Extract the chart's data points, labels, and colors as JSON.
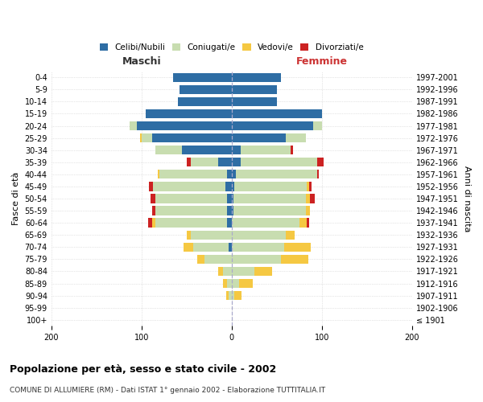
{
  "age_groups": [
    "100+",
    "95-99",
    "90-94",
    "85-89",
    "80-84",
    "75-79",
    "70-74",
    "65-69",
    "60-64",
    "55-59",
    "50-54",
    "45-49",
    "40-44",
    "35-39",
    "30-34",
    "25-29",
    "20-24",
    "15-19",
    "10-14",
    "5-9",
    "0-4"
  ],
  "birth_years": [
    "≤ 1901",
    "1902-1906",
    "1907-1911",
    "1912-1916",
    "1917-1921",
    "1922-1926",
    "1927-1931",
    "1932-1936",
    "1937-1941",
    "1942-1946",
    "1947-1951",
    "1952-1956",
    "1957-1961",
    "1962-1966",
    "1967-1971",
    "1972-1976",
    "1977-1981",
    "1982-1986",
    "1987-1991",
    "1992-1996",
    "1997-2001"
  ],
  "maschi": {
    "celibi": [
      0,
      0,
      0,
      0,
      0,
      0,
      3,
      0,
      5,
      5,
      5,
      7,
      5,
      15,
      55,
      88,
      105,
      95,
      60,
      58,
      65
    ],
    "coniugati": [
      0,
      0,
      3,
      5,
      10,
      30,
      40,
      45,
      80,
      80,
      80,
      80,
      75,
      30,
      30,
      12,
      8,
      0,
      0,
      0,
      0
    ],
    "vedovi": [
      0,
      0,
      3,
      5,
      5,
      8,
      10,
      5,
      3,
      0,
      0,
      0,
      2,
      0,
      0,
      2,
      0,
      0,
      0,
      0,
      0
    ],
    "divorziati": [
      0,
      0,
      0,
      0,
      0,
      0,
      0,
      0,
      5,
      3,
      5,
      5,
      0,
      5,
      0,
      0,
      0,
      0,
      0,
      0,
      0
    ]
  },
  "femmine": {
    "nubili": [
      0,
      0,
      0,
      0,
      0,
      0,
      0,
      0,
      0,
      2,
      2,
      3,
      5,
      10,
      10,
      60,
      90,
      100,
      50,
      50,
      55
    ],
    "coniugate": [
      0,
      0,
      3,
      8,
      25,
      55,
      58,
      60,
      75,
      80,
      80,
      80,
      90,
      85,
      55,
      22,
      10,
      0,
      0,
      0,
      0
    ],
    "vedove": [
      0,
      0,
      8,
      15,
      20,
      30,
      30,
      10,
      8,
      5,
      5,
      3,
      0,
      0,
      0,
      0,
      0,
      0,
      0,
      0,
      0
    ],
    "divorziate": [
      0,
      0,
      0,
      0,
      0,
      0,
      0,
      0,
      3,
      0,
      5,
      3,
      2,
      7,
      3,
      0,
      0,
      0,
      0,
      0,
      0
    ]
  },
  "colors": {
    "celibi": "#2e6da4",
    "coniugati": "#c8ddb0",
    "vedovi": "#f5c842",
    "divorziati": "#cc2222"
  },
  "xlim": 200,
  "title": "Popolazione per età, sesso e stato civile - 2002",
  "subtitle": "COMUNE DI ALLUMIERE (RM) - Dati ISTAT 1° gennaio 2002 - Elaborazione TUTTITALIA.IT",
  "ylabel_left": "Fasce di età",
  "ylabel_right": "Anni di nascita",
  "xlabel_left": "Maschi",
  "xlabel_right": "Femmine"
}
